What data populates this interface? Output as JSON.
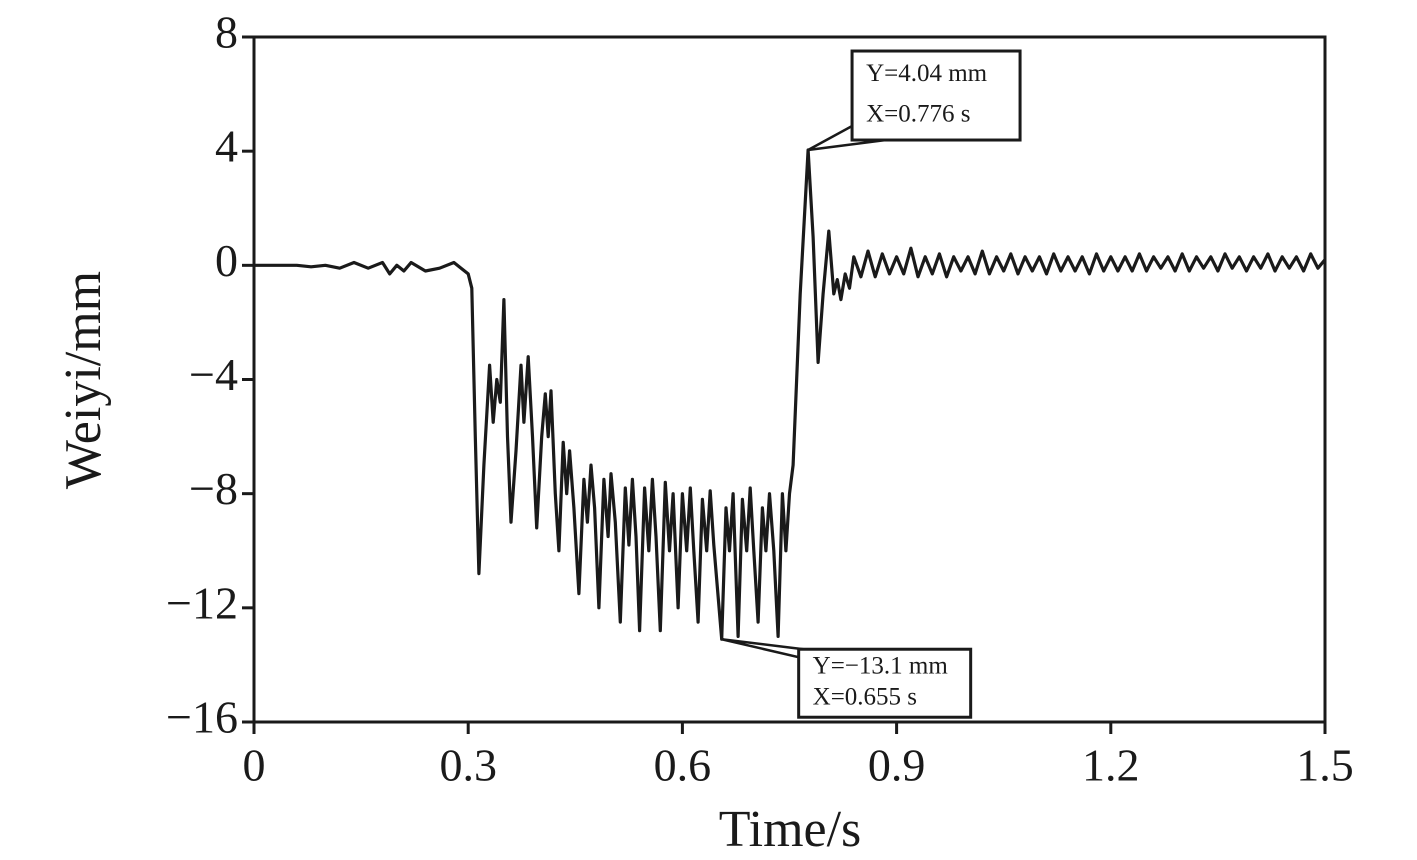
{
  "chart_data": {
    "type": "line",
    "xlabel": "Time/s",
    "ylabel": "Weiyi/mm",
    "xlim": [
      0,
      1.5
    ],
    "ylim": [
      -16,
      8
    ],
    "xticks": [
      0,
      0.3,
      0.6,
      0.9,
      1.2,
      1.5
    ],
    "yticks": [
      8,
      4,
      0,
      {
        "value": -4,
        "label": "−4"
      },
      {
        "value": -8,
        "label": "−8"
      },
      {
        "value": -12,
        "label": "−12"
      },
      {
        "value": -16,
        "label": "−16"
      }
    ],
    "x": [
      0,
      0.02,
      0.04,
      0.06,
      0.08,
      0.1,
      0.12,
      0.14,
      0.16,
      0.18,
      0.19,
      0.2,
      0.21,
      0.22,
      0.24,
      0.26,
      0.28,
      0.29,
      0.3,
      0.305,
      0.31,
      0.315,
      0.322,
      0.33,
      0.335,
      0.34,
      0.345,
      0.35,
      0.355,
      0.36,
      0.367,
      0.374,
      0.378,
      0.384,
      0.39,
      0.396,
      0.403,
      0.408,
      0.412,
      0.416,
      0.422,
      0.427,
      0.433,
      0.438,
      0.442,
      0.448,
      0.455,
      0.462,
      0.467,
      0.472,
      0.477,
      0.483,
      0.49,
      0.496,
      0.5,
      0.506,
      0.513,
      0.52,
      0.525,
      0.53,
      0.535,
      0.54,
      0.547,
      0.553,
      0.558,
      0.563,
      0.569,
      0.576,
      0.582,
      0.587,
      0.594,
      0.6,
      0.606,
      0.611,
      0.616,
      0.622,
      0.628,
      0.634,
      0.639,
      0.644,
      0.655,
      0.661,
      0.666,
      0.671,
      0.678,
      0.684,
      0.69,
      0.695,
      0.7,
      0.706,
      0.712,
      0.717,
      0.722,
      0.728,
      0.734,
      0.74,
      0.745,
      0.75,
      0.755,
      0.765,
      0.776,
      0.783,
      0.79,
      0.797,
      0.805,
      0.812,
      0.817,
      0.822,
      0.828,
      0.834,
      0.84,
      0.85,
      0.86,
      0.87,
      0.88,
      0.89,
      0.9,
      0.91,
      0.92,
      0.93,
      0.94,
      0.95,
      0.96,
      0.97,
      0.98,
      0.99,
      1.0,
      1.01,
      1.02,
      1.03,
      1.04,
      1.05,
      1.06,
      1.07,
      1.08,
      1.09,
      1.1,
      1.11,
      1.12,
      1.13,
      1.14,
      1.15,
      1.16,
      1.17,
      1.18,
      1.19,
      1.2,
      1.21,
      1.22,
      1.23,
      1.24,
      1.25,
      1.26,
      1.27,
      1.28,
      1.29,
      1.3,
      1.31,
      1.32,
      1.33,
      1.34,
      1.35,
      1.36,
      1.37,
      1.38,
      1.39,
      1.4,
      1.41,
      1.42,
      1.43,
      1.44,
      1.45,
      1.46,
      1.47,
      1.48,
      1.49,
      1.5
    ],
    "series": [
      {
        "color": "#1a1a1a",
        "values": [
          0,
          0,
          0,
          0,
          -0.05,
          0,
          -0.1,
          0.1,
          -0.1,
          0.1,
          -0.3,
          0,
          -0.2,
          0.1,
          -0.2,
          -0.1,
          0.1,
          -0.1,
          -0.3,
          -0.8,
          -6,
          -10.8,
          -7,
          -3.5,
          -5.5,
          -4,
          -4.8,
          -1.2,
          -6,
          -9,
          -6.5,
          -3.5,
          -5.5,
          -3.2,
          -6,
          -9.2,
          -6,
          -4.5,
          -6,
          -4.4,
          -8,
          -10,
          -6.2,
          -8,
          -6.5,
          -8.5,
          -11.5,
          -7.5,
          -9,
          -7,
          -8.5,
          -12,
          -7.5,
          -9.5,
          -7.3,
          -9,
          -12.5,
          -7.8,
          -9.8,
          -7.5,
          -9.5,
          -12.8,
          -7.8,
          -10,
          -7.5,
          -9.5,
          -12.8,
          -7.6,
          -10,
          -8,
          -12,
          -8,
          -10,
          -7.8,
          -10,
          -12.5,
          -8.2,
          -10,
          -7.9,
          -9.8,
          -13.1,
          -8.5,
          -10,
          -8,
          -13,
          -8.2,
          -10,
          -7.8,
          -10,
          -12.5,
          -8.5,
          -10,
          -8,
          -10,
          -13,
          -8,
          -10,
          -8,
          -7,
          -1,
          4.04,
          1,
          -3.4,
          -1,
          1.2,
          -1,
          -0.5,
          -1.2,
          -0.3,
          -0.8,
          0.3,
          -0.4,
          0.5,
          -0.4,
          0.4,
          -0.3,
          0.3,
          -0.3,
          0.6,
          -0.4,
          0.3,
          -0.3,
          0.4,
          -0.4,
          0.3,
          -0.2,
          0.3,
          -0.3,
          0.5,
          -0.3,
          0.3,
          -0.2,
          0.4,
          -0.3,
          0.3,
          -0.2,
          0.3,
          -0.3,
          0.4,
          -0.2,
          0.3,
          -0.2,
          0.3,
          -0.3,
          0.4,
          -0.2,
          0.3,
          -0.2,
          0.3,
          -0.2,
          0.4,
          -0.2,
          0.3,
          -0.1,
          0.3,
          -0.2,
          0.4,
          -0.2,
          0.3,
          -0.1,
          0.3,
          -0.2,
          0.4,
          -0.1,
          0.3,
          -0.2,
          0.3,
          -0.1,
          0.4,
          -0.2,
          0.3,
          -0.1,
          0.3,
          -0.2,
          0.4,
          -0.1,
          0.2
        ]
      }
    ],
    "annotations": [
      {
        "x": 0.776,
        "y": 4.04,
        "lines": [
          "Y=4.04 mm",
          "X=0.776 s"
        ]
      },
      {
        "x": 0.655,
        "y": -13.1,
        "lines": [
          "Y=−13.1 mm",
          "X=0.655 s"
        ]
      }
    ]
  }
}
